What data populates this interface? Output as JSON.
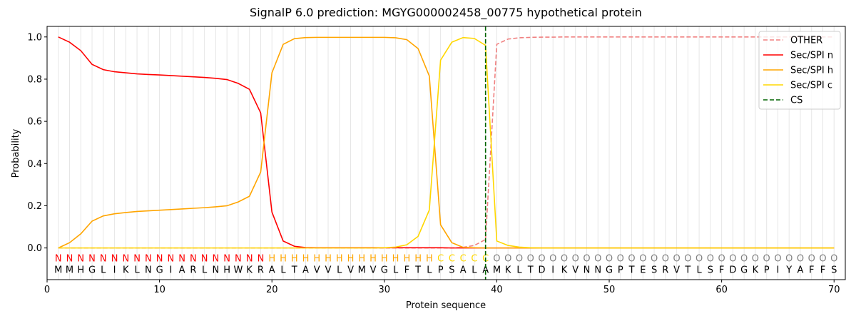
{
  "chart_data": {
    "type": "line",
    "title": "SignalP 6.0 prediction: MGYG000002458_00775 hypothetical protein",
    "xlabel": "Protein sequence",
    "ylabel": "Probability",
    "x": [
      1,
      2,
      3,
      4,
      5,
      6,
      7,
      8,
      9,
      10,
      11,
      12,
      13,
      14,
      15,
      16,
      17,
      18,
      19,
      20,
      21,
      22,
      23,
      24,
      25,
      26,
      27,
      28,
      29,
      30,
      31,
      32,
      33,
      34,
      35,
      36,
      37,
      38,
      39,
      40,
      41,
      42,
      43,
      44,
      45,
      46,
      47,
      48,
      49,
      50,
      51,
      52,
      53,
      54,
      55,
      56,
      57,
      58,
      59,
      60,
      61,
      62,
      63,
      64,
      65,
      66,
      67,
      68,
      69,
      70
    ],
    "series": [
      {
        "name": "OTHER",
        "color": "#f08080",
        "dashed": true,
        "values": [
          0,
          0,
          0,
          0,
          0,
          0,
          0,
          0,
          0,
          0,
          0,
          0,
          0,
          0,
          0,
          0,
          0,
          0,
          0,
          0,
          0,
          0,
          0,
          0,
          0,
          0,
          0,
          0,
          0,
          0,
          0,
          0,
          0,
          0,
          0,
          0,
          0.003,
          0.012,
          0.04,
          0.965,
          0.99,
          0.996,
          0.998,
          0.999,
          0.999,
          1,
          1,
          1,
          1,
          1,
          1,
          1,
          1,
          1,
          1,
          1,
          1,
          1,
          1,
          1,
          1,
          1,
          1,
          1,
          1,
          1,
          1,
          1,
          1,
          1
        ]
      },
      {
        "name": "Sec/SPI n",
        "color": "#ff0000",
        "values": [
          1.0,
          0.975,
          0.935,
          0.87,
          0.845,
          0.835,
          0.83,
          0.825,
          0.822,
          0.82,
          0.817,
          0.814,
          0.811,
          0.808,
          0.804,
          0.798,
          0.78,
          0.752,
          0.64,
          0.17,
          0.033,
          0.008,
          0.002,
          0.001,
          0.001,
          0.001,
          0.001,
          0.001,
          0.001,
          0.001,
          0.001,
          0.001,
          0.001,
          0.001,
          0.001,
          0,
          0,
          0,
          0,
          0,
          0,
          0,
          0,
          0,
          0,
          0,
          0,
          0,
          0,
          0,
          0,
          0,
          0,
          0,
          0,
          0,
          0,
          0,
          0,
          0,
          0,
          0,
          0,
          0,
          0,
          0,
          0,
          0,
          0,
          0
        ]
      },
      {
        "name": "Sec/SPI h",
        "color": "#ffa500",
        "values": [
          0,
          0.025,
          0.067,
          0.127,
          0.152,
          0.162,
          0.168,
          0.173,
          0.176,
          0.179,
          0.182,
          0.185,
          0.188,
          0.191,
          0.195,
          0.2,
          0.218,
          0.245,
          0.36,
          0.83,
          0.965,
          0.992,
          0.997,
          0.998,
          0.998,
          0.998,
          0.998,
          0.998,
          0.998,
          0.998,
          0.996,
          0.987,
          0.945,
          0.815,
          0.11,
          0.025,
          0.003,
          0.001,
          0,
          0,
          0,
          0,
          0,
          0,
          0,
          0,
          0,
          0,
          0,
          0,
          0,
          0,
          0,
          0,
          0,
          0,
          0,
          0,
          0,
          0,
          0,
          0,
          0,
          0,
          0,
          0,
          0,
          0,
          0,
          0
        ]
      },
      {
        "name": "Sec/SPI c",
        "color": "#ffd700",
        "values": [
          0,
          0,
          0,
          0,
          0,
          0,
          0,
          0,
          0,
          0,
          0,
          0,
          0,
          0,
          0,
          0,
          0,
          0,
          0,
          0,
          0,
          0,
          0,
          0,
          0,
          0,
          0,
          0,
          0,
          0.001,
          0.004,
          0.015,
          0.055,
          0.18,
          0.89,
          0.975,
          0.997,
          0.993,
          0.96,
          0.033,
          0.012,
          0.004,
          0.001,
          0,
          0,
          0,
          0,
          0,
          0,
          0,
          0,
          0,
          0,
          0,
          0,
          0,
          0,
          0,
          0,
          0,
          0,
          0,
          0,
          0,
          0,
          0,
          0,
          0,
          0,
          0
        ]
      }
    ],
    "cs": {
      "name": "CS",
      "x": 39,
      "color": "#006400"
    },
    "region_labels": [
      "N",
      "N",
      "N",
      "N",
      "N",
      "N",
      "N",
      "N",
      "N",
      "N",
      "N",
      "N",
      "N",
      "N",
      "N",
      "N",
      "N",
      "N",
      "N",
      "H",
      "H",
      "H",
      "H",
      "H",
      "H",
      "H",
      "H",
      "H",
      "H",
      "H",
      "H",
      "H",
      "H",
      "H",
      "C",
      "C",
      "C",
      "C",
      "C",
      "O",
      "O",
      "O",
      "O",
      "O",
      "O",
      "O",
      "O",
      "O",
      "O",
      "O",
      "O",
      "O",
      "O",
      "O",
      "O",
      "O",
      "O",
      "O",
      "O",
      "O",
      "O",
      "O",
      "O",
      "O",
      "O",
      "O",
      "O",
      "O",
      "O",
      "O"
    ],
    "region_colors": {
      "N": "#ff0000",
      "H": "#ffa500",
      "C": "#ffd700",
      "O": "#808080"
    },
    "sequence": [
      "M",
      "M",
      "H",
      "G",
      "L",
      "I",
      "K",
      "L",
      "N",
      "G",
      "I",
      "A",
      "R",
      "L",
      "N",
      "H",
      "W",
      "K",
      "R",
      "A",
      "L",
      "T",
      "A",
      "V",
      "V",
      "L",
      "V",
      "M",
      "V",
      "G",
      "L",
      "F",
      "T",
      "L",
      "P",
      "S",
      "A",
      "L",
      "A",
      "M",
      "K",
      "L",
      "T",
      "D",
      "I",
      "K",
      "V",
      "N",
      "N",
      "G",
      "P",
      "T",
      "E",
      "S",
      "R",
      "V",
      "T",
      "L",
      "S",
      "F",
      "D",
      "G",
      "K",
      "P",
      "I",
      "Y",
      "A",
      "F",
      "F",
      "S"
    ],
    "xlim": [
      0,
      71
    ],
    "ylim": [
      -0.15,
      1.05
    ],
    "xticks": [
      0,
      10,
      20,
      30,
      40,
      50,
      60,
      70
    ],
    "yticks": [
      {
        "value": 0,
        "label": "0.0"
      },
      0.2,
      0.4,
      0.6,
      0.8,
      {
        "value": 1,
        "label": "1.0"
      }
    ],
    "vgrid": true,
    "legend": "upper right"
  }
}
